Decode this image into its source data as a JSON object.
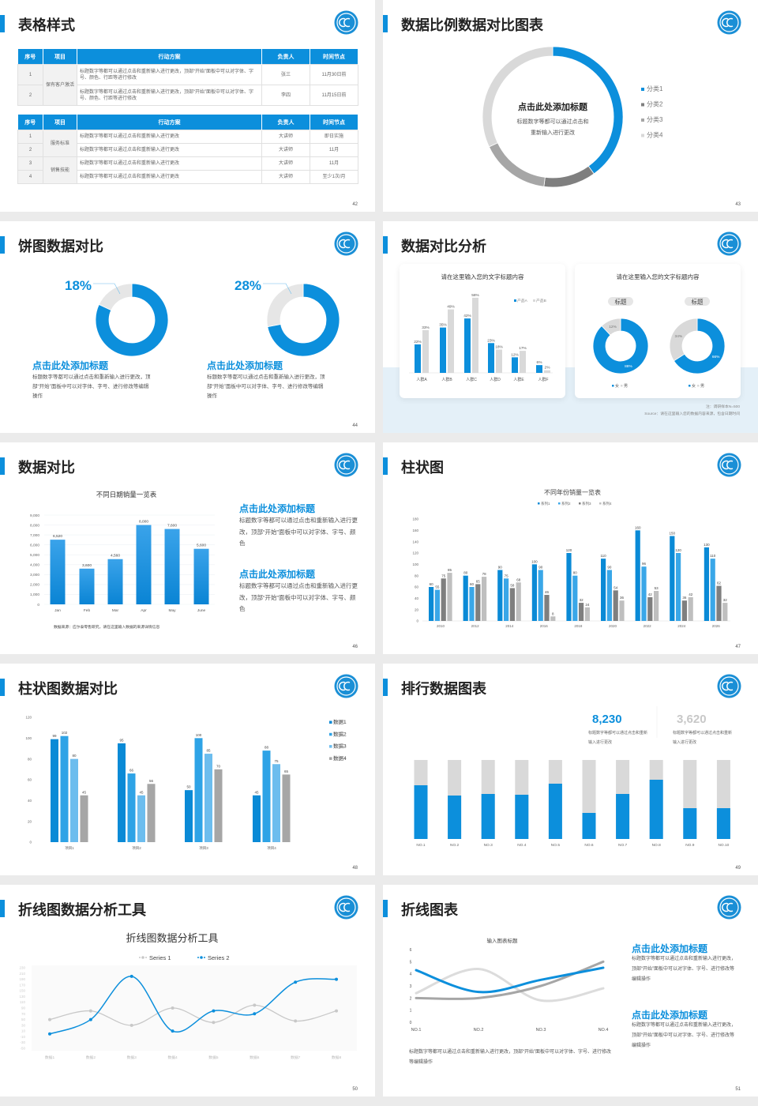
{
  "colors": {
    "accent": "#0c8fdc",
    "blue2": "#2ea3e6",
    "blue3": "#6cbdee",
    "grey_light": "#d9d9d9",
    "grey_mid": "#a6a6a6",
    "grey_dark": "#7f7f7f",
    "header": "#0c8fdc"
  },
  "logo_icon": "cc-circle-logo",
  "slide42": {
    "title": "表格样式",
    "page": "42",
    "table1": {
      "headers": [
        "序号",
        "项目",
        "行动方案",
        "负责人",
        "时间节点"
      ],
      "group": "保有客户激活",
      "rows": [
        {
          "no": "1",
          "plan": "标题数字等都可以通过点击和重新输入进行更改，顶部“开始”面板中可以对字体、字号、颜色、行距等进行修改",
          "owner": "张三",
          "time": "11月30日前"
        },
        {
          "no": "2",
          "plan": "标题数字等都可以通过点击和重新输入进行更改，顶部“开始”面板中可以对字体、字号、颜色、行距等进行修改",
          "owner": "李四",
          "time": "11月15日前"
        }
      ]
    },
    "table2": {
      "headers": [
        "序号",
        "项目",
        "行动方案",
        "负责人",
        "时间节点"
      ],
      "groups": [
        "服务标准",
        "销售技能"
      ],
      "rows": [
        {
          "no": "1",
          "plan": "标题数字等都可以通过点击和重新输入进行更改",
          "owner": "大讲师",
          "time": "即日实施"
        },
        {
          "no": "2",
          "plan": "标题数字等都可以通过点击和重新输入进行更改",
          "owner": "大讲师",
          "time": "11月"
        },
        {
          "no": "3",
          "plan": "标题数字等都可以通过点击和重新输入进行更改",
          "owner": "大讲师",
          "time": "11月"
        },
        {
          "no": "4",
          "plan": "标题数字等都可以通过点击和重新输入进行更改",
          "owner": "大讲师",
          "time": "至少1次/月"
        }
      ]
    }
  },
  "slide43": {
    "title": "数据比例数据对比图表",
    "page": "43",
    "center_title": "点击此处添加标题",
    "center_lines": [
      "标题数字等都可以通过点击和",
      "重新输入进行更改"
    ]
  },
  "slide44": {
    "title": "饼图数据对比",
    "page": "44",
    "items": [
      {
        "percent_label": "18%",
        "heading": "点击此处添加标题",
        "desc": "标题数字等都可以通过点击和重新输入进行更改，顶部“开始”面板中可以对字体、字号、进行修改等编辑操作"
      },
      {
        "percent_label": "28%",
        "heading": "点击此处添加标题",
        "desc": "标题数字等都可以通过点击和重新输入进行更改，顶部“开始”面板中可以对字体、字号、进行修改等编辑操作"
      }
    ]
  },
  "slide45": {
    "title": "数据对比分析",
    "page": "45",
    "bar_card_title": "请在这里输入您的文字标题内容",
    "donut_card_title": "请在这里输入您的文字标题内容",
    "donut_tags": [
      "标题",
      "标题"
    ],
    "note": "注：调研样本N=500",
    "source": "Source：请在这里输入您的数据内容来源，包含日期时间"
  },
  "slide46": {
    "title": "数据对比",
    "page": "46",
    "footnote": "数据来源：应尔泰零售研究，请在这里输入数据的来源详情信息",
    "blocks": [
      {
        "heading": "点击此处添加标题",
        "desc": "标题数字等都可以通过点击和重新输入进行更改，顶部“开始”面板中可以对字体、字号、颜色"
      },
      {
        "heading": "点击此处添加标题",
        "desc": "标题数字等都可以通过点击和重新输入进行更改，顶部“开始”面板中可以对字体、字号、颜色"
      }
    ]
  },
  "slide47": {
    "title": "柱状图",
    "page": "47"
  },
  "slide48": {
    "title": "柱状图数据对比",
    "page": "48"
  },
  "slide49": {
    "title": "排行数据图表",
    "page": "49",
    "stats": [
      {
        "value": "8,230",
        "desc": "标题数字等都可以通过点击和重新输入进行更改"
      },
      {
        "value": "3,620",
        "desc": "标题数字等都可以通过点击和重新输入进行更改"
      }
    ]
  },
  "slide50": {
    "title": "折线图数据分析工具",
    "page": "50"
  },
  "slide51": {
    "title": "折线图表",
    "page": "51",
    "bottom_text": "标题数字等都可以通过点击和重新输入进行更改，顶部“开始”面板中可以对字体、字号、进行修改等编辑操作",
    "blocks": [
      {
        "heading": "点击此处添加标题",
        "desc": "标题数字等都可以通过点击和重新输入进行更改，顶部“开始”面板中可以对字体、字号、进行修改等编辑操作"
      },
      {
        "heading": "点击此处添加标题",
        "desc": "标题数字等都可以通过点击和重新输入进行更改，顶部“开始”面板中可以对字体、字号、进行修改等编辑操作"
      }
    ]
  },
  "chart_data": [
    {
      "id": "s43-donut",
      "type": "pie",
      "categories": [
        "分类1",
        "分类2",
        "分类3",
        "分类4"
      ],
      "values": [
        40,
        12,
        16,
        32
      ],
      "colors": [
        "#0c8fdc",
        "#7f7f7f",
        "#a6a6a6",
        "#d9d9d9"
      ],
      "legend": "right"
    },
    {
      "id": "s44-donut-1",
      "type": "pie",
      "categories": [
        "",
        ""
      ],
      "values": [
        82,
        18
      ],
      "colors": [
        "#0c8fdc",
        "#e6e6e6"
      ]
    },
    {
      "id": "s44-donut-2",
      "type": "pie",
      "categories": [
        "",
        ""
      ],
      "values": [
        72,
        28
      ],
      "colors": [
        "#0c8fdc",
        "#e6e6e6"
      ]
    },
    {
      "id": "s45-bar",
      "type": "bar",
      "categories": [
        "人群A",
        "人群B",
        "人群C",
        "人群D",
        "人群E",
        "人群F"
      ],
      "series": [
        {
          "name": "产品A",
          "values": [
            22,
            35,
            42,
            23,
            12,
            6
          ],
          "color": "#0c8fdc"
        },
        {
          "name": "产品B",
          "values": [
            33,
            49,
            58,
            18,
            17,
            2
          ],
          "color": "#d9d9d9"
        }
      ],
      "value_suffix": "%",
      "legend": "top-right"
    },
    {
      "id": "s45-donut-1",
      "type": "pie",
      "categories": [
        "女",
        "男"
      ],
      "values": [
        88,
        12
      ],
      "labels": [
        "88%",
        "12%"
      ],
      "colors": [
        "#0c8fdc",
        "#d9d9d9"
      ]
    },
    {
      "id": "s45-donut-2",
      "type": "pie",
      "categories": [
        "女",
        "男"
      ],
      "values": [
        66,
        34
      ],
      "labels": [
        "66%",
        "34%"
      ],
      "colors": [
        "#0c8fdc",
        "#d9d9d9"
      ]
    },
    {
      "id": "s46-bar",
      "type": "bar",
      "title": "不同日期销量一览表",
      "categories": [
        "Jan",
        "Feb",
        "Mar",
        "Apr",
        "May",
        "June"
      ],
      "values": [
        6520,
        3600,
        4560,
        8000,
        7600,
        5600
      ],
      "labels": [
        "6,520",
        "3,600",
        "4,560",
        "8,000",
        "7,600",
        "5,600"
      ],
      "yticks": [
        "0",
        "1,000",
        "2,000",
        "3,000",
        "4,000",
        "5,000",
        "6,000",
        "7,000",
        "8,000",
        "9,000"
      ],
      "ylim": [
        0,
        9000
      ],
      "grid": true
    },
    {
      "id": "s47-bar",
      "type": "bar",
      "title": "不同年份销量一览表",
      "categories": [
        "2010",
        "2012",
        "2014",
        "2016",
        "2018",
        "2020",
        "2022",
        "2024",
        "2026"
      ],
      "series": [
        {
          "name": "系列1",
          "values": [
            60,
            80,
            90,
            100,
            120,
            110,
            160,
            150,
            130
          ],
          "color": "#0a8ad6"
        },
        {
          "name": "系列2",
          "values": [
            55,
            60,
            75,
            90,
            80,
            90,
            96,
            120,
            110
          ],
          "color": "#3aa7e8"
        },
        {
          "name": "系列3",
          "values": [
            75,
            65,
            58,
            46,
            32,
            54,
            42,
            36,
            62
          ],
          "color": "#7f7f7f"
        },
        {
          "name": "系列4",
          "values": [
            85,
            78,
            68,
            8,
            24,
            36,
            53,
            42,
            32
          ],
          "color": "#bfbfbf"
        }
      ],
      "yticks": [
        "0",
        "20",
        "40",
        "60",
        "80",
        "100",
        "120",
        "140",
        "160",
        "180"
      ],
      "ylim": [
        0,
        180
      ],
      "legend": "top"
    },
    {
      "id": "s48-bar",
      "type": "bar",
      "categories": [
        "项目1",
        "项目2",
        "项目3",
        "项目4"
      ],
      "series": [
        {
          "name": "数据1",
          "values": [
            99,
            95,
            50,
            45
          ],
          "color": "#0a8ad6"
        },
        {
          "name": "数据2",
          "values": [
            102,
            66,
            100,
            88
          ],
          "color": "#2ea3e6"
        },
        {
          "name": "数据3",
          "values": [
            80,
            45,
            85,
            75
          ],
          "color": "#6cbdee"
        },
        {
          "name": "数据4",
          "values": [
            45,
            56,
            70,
            65
          ],
          "color": "#a6a6a6"
        }
      ],
      "yticks": [
        "0",
        "20",
        "40",
        "60",
        "80",
        "100",
        "120"
      ],
      "ylim": [
        0,
        120
      ],
      "legend": "right"
    },
    {
      "id": "s49-rank",
      "type": "bar",
      "categories": [
        "NO.1",
        "NO.2",
        "NO.3",
        "NO.4",
        "NO.5",
        "NO.6",
        "NO.7",
        "NO.8",
        "NO.9",
        "NO.10"
      ],
      "values": [
        68,
        55,
        57,
        56,
        70,
        33,
        57,
        75,
        39,
        39
      ],
      "ylim": [
        0,
        100
      ]
    },
    {
      "id": "s50-line",
      "type": "line",
      "title": "折线图数据分析工具",
      "categories": [
        "数据1",
        "数据2",
        "数据3",
        "数据4",
        "数据5",
        "数据6",
        "数据7",
        "数据8"
      ],
      "series": [
        {
          "name": "Series 1",
          "values": [
            50,
            80,
            30,
            90,
            40,
            100,
            45,
            80
          ],
          "color": "#c8c8c8"
        },
        {
          "name": "Series 2",
          "values": [
            0,
            50,
            200,
            10,
            80,
            70,
            180,
            190
          ],
          "color": "#0c8fdc"
        }
      ],
      "yticks": [
        "-50",
        "-30",
        "-10",
        "10",
        "30",
        "50",
        "70",
        "90",
        "110",
        "130",
        "150",
        "170",
        "190",
        "210",
        "230"
      ],
      "ylim": [
        -50,
        230
      ],
      "legend": "top"
    },
    {
      "id": "s51-line",
      "type": "line",
      "title": "输入图表标题",
      "categories": [
        "NO.1",
        "NO.2",
        "NO.3",
        "NO.4"
      ],
      "series": [
        {
          "values": [
            4.3,
            2.5,
            3.5,
            4.5
          ],
          "color": "#0c8fdc"
        },
        {
          "values": [
            2.4,
            4.4,
            1.8,
            2.8
          ],
          "color": "#dcdcdc"
        },
        {
          "values": [
            2.0,
            2.0,
            3.0,
            5.0
          ],
          "color": "#a6a6a6"
        }
      ],
      "yticks": [
        "0",
        "1",
        "2",
        "3",
        "4",
        "5",
        "6"
      ],
      "ylim": [
        0,
        6
      ]
    }
  ]
}
